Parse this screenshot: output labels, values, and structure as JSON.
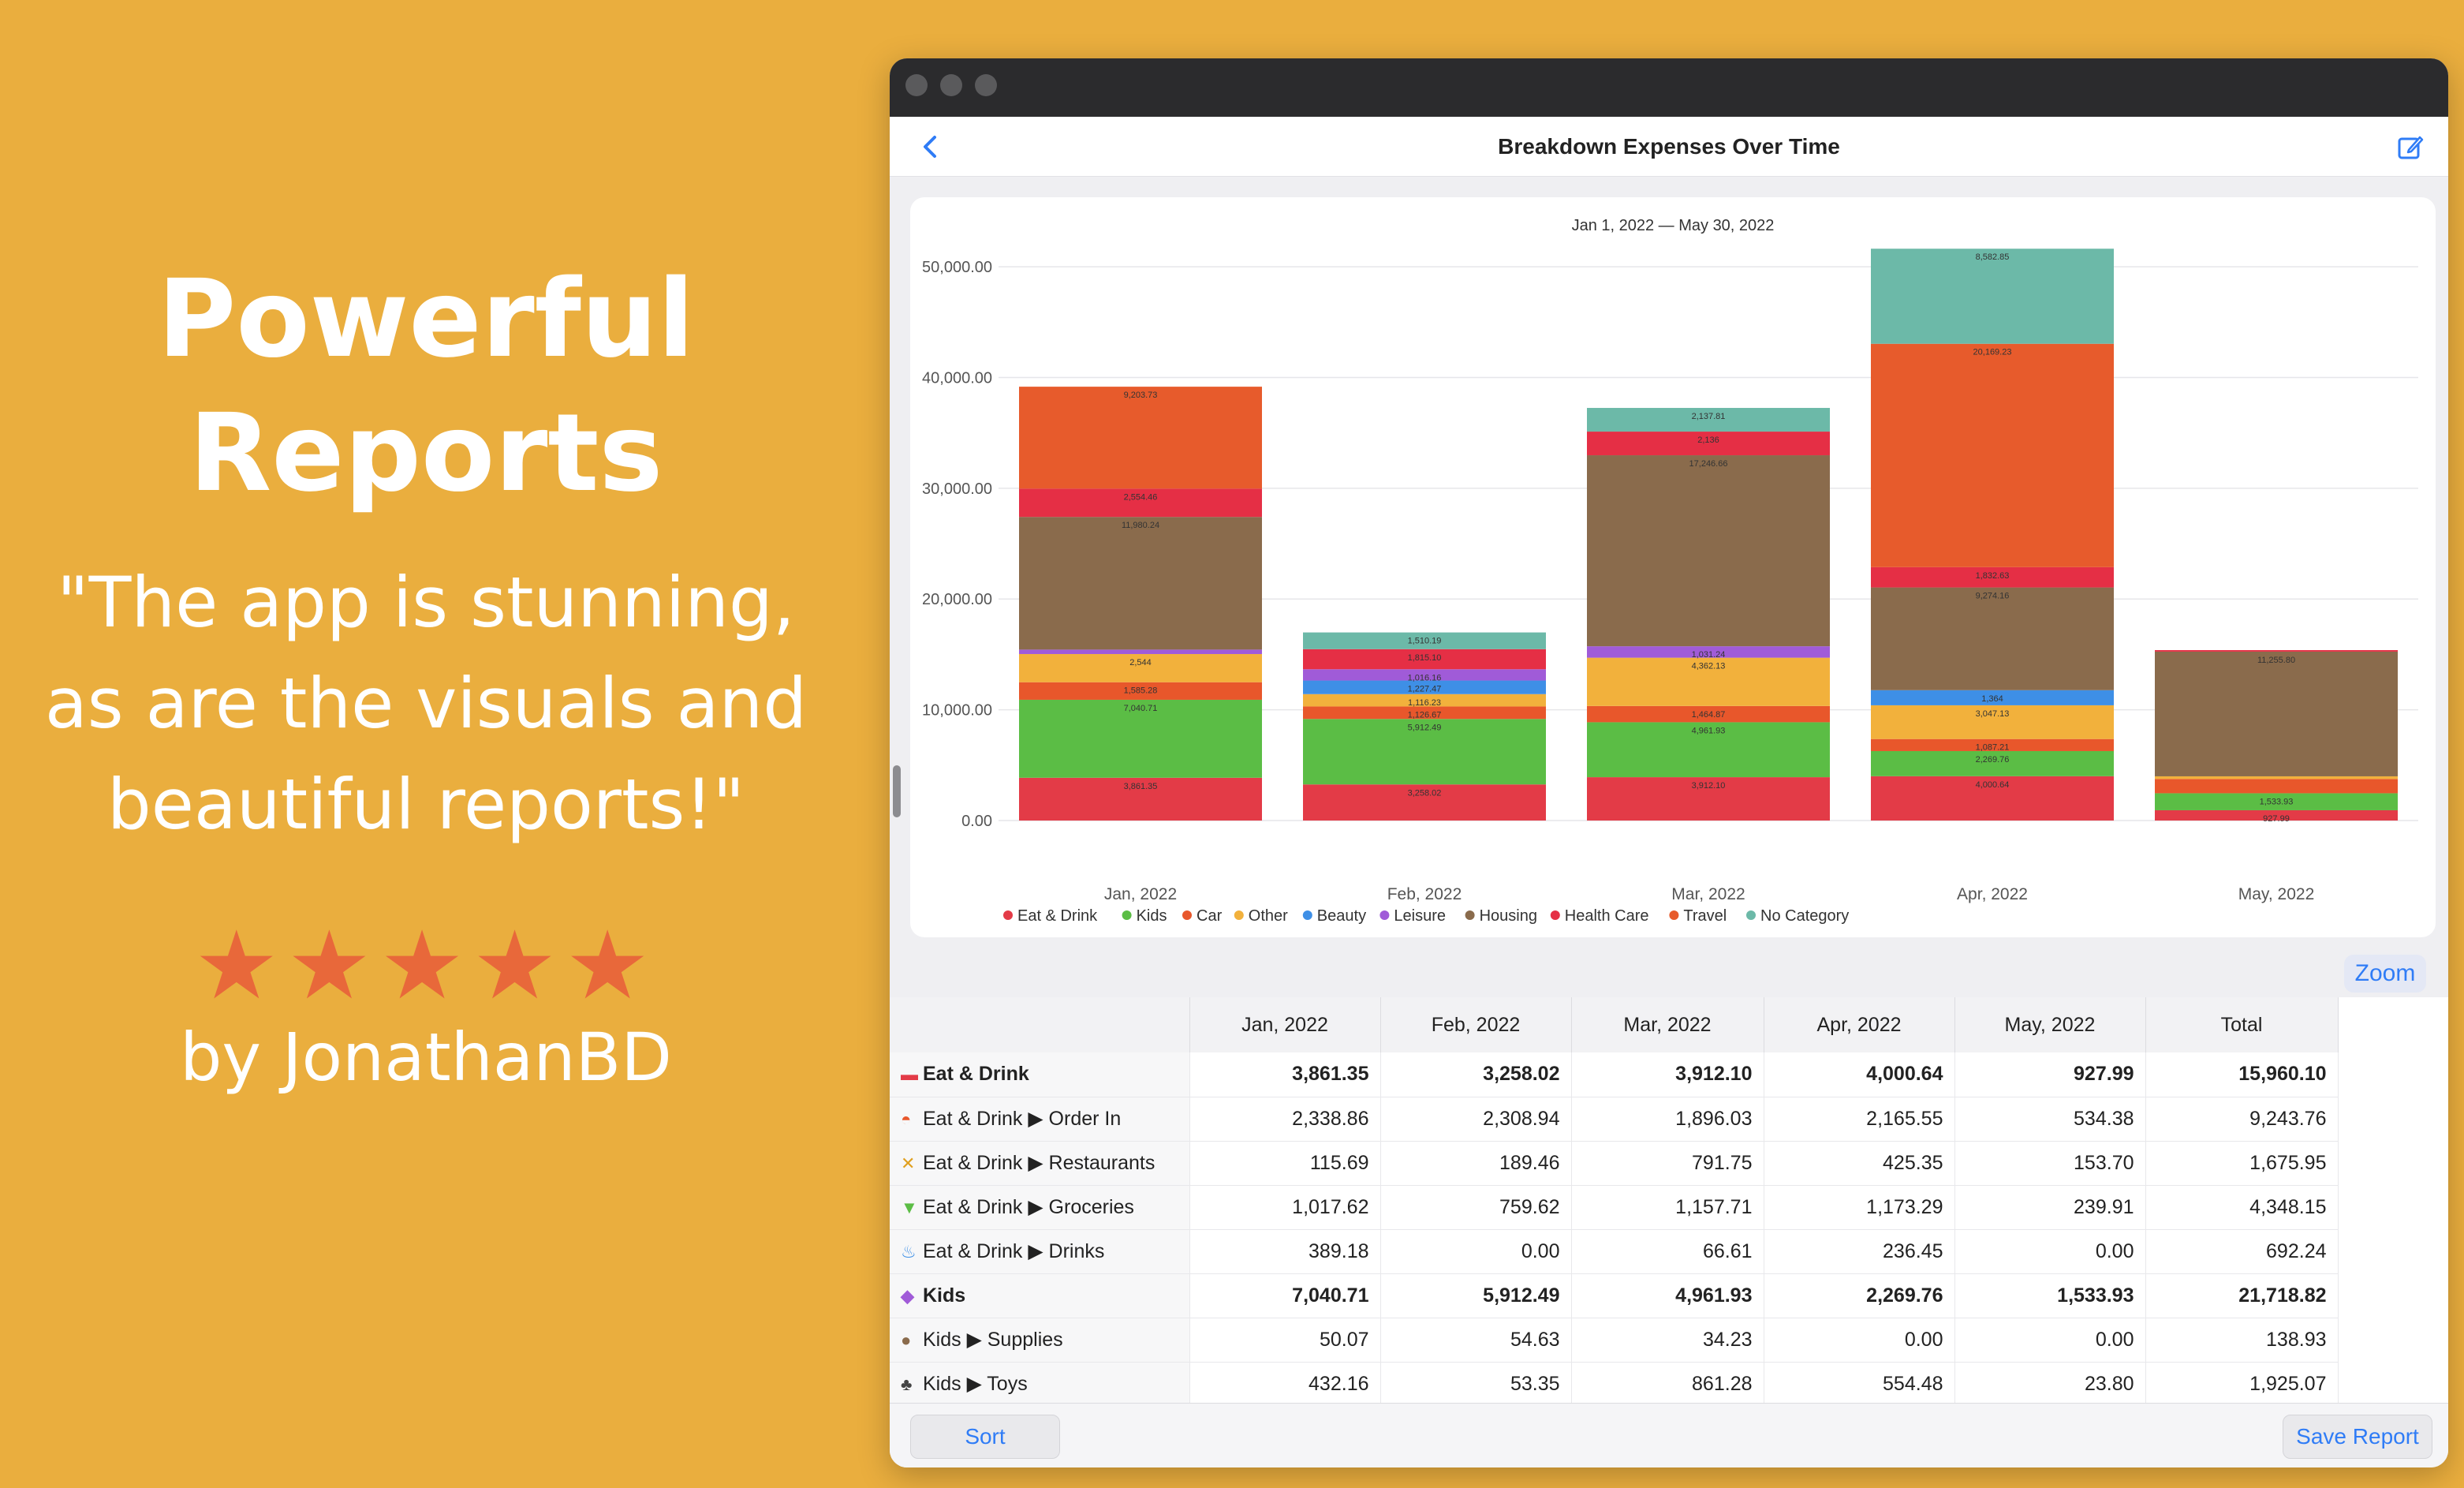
{
  "promo": {
    "headline_line1": "Powerful",
    "headline_line2": "Reports",
    "quote_line1": "\"The app is stunning,",
    "quote_line2": "as are the visuals and",
    "quote_line3": "beautiful reports!\"",
    "stars": "★★★★★",
    "byline": "by JonathanBD",
    "star_color": "#E8683A"
  },
  "window": {
    "title": "Breakdown Expenses Over Time",
    "back_icon": "chevron-left-icon",
    "edit_icon": "edit-icon",
    "accent": "#2F7CF6"
  },
  "chart_data": {
    "type": "bar",
    "stacked": true,
    "subtitle": "Jan 1, 2022 — May 30, 2022",
    "categories": [
      "Jan, 2022",
      "Feb, 2022",
      "Mar, 2022",
      "Apr, 2022",
      "May, 2022"
    ],
    "ylim": [
      0,
      52000
    ],
    "yticks": [
      "0.00",
      "10,000.00",
      "20,000.00",
      "30,000.00",
      "40,000.00",
      "50,000.00"
    ],
    "ytick_values": [
      0,
      10000,
      20000,
      30000,
      40000,
      50000
    ],
    "grid": true,
    "legend_position": "bottom",
    "series": [
      {
        "name": "Eat & Drink",
        "color": "#E33B47",
        "values": [
          3861.35,
          3258.02,
          3912.1,
          4000.64,
          927.99
        ],
        "labels": [
          "3,861.35",
          "3,258.02",
          "3,912.10",
          "4,000.64",
          "927.99"
        ]
      },
      {
        "name": "Kids",
        "color": "#5BBD45",
        "values": [
          7040.71,
          5912.49,
          4961.93,
          2269.76,
          1533.93
        ],
        "labels": [
          "7,040.71",
          "5,912.49",
          "4,961.93",
          "2,269.76",
          "1,533.93"
        ]
      },
      {
        "name": "Car",
        "color": "#E8572B",
        "values": [
          1585.28,
          1126.67,
          1464.87,
          1087.21,
          1290
        ],
        "labels": [
          "1,585.28",
          "1,126.67",
          "1,464.87",
          "1,087.21",
          ""
        ]
      },
      {
        "name": "Other",
        "color": "#F2B13C",
        "values": [
          2544,
          1116.23,
          4362.13,
          3047.13,
          240
        ],
        "labels": [
          "2,544",
          "1,116.23",
          "4,362.13",
          "3,047.13",
          ""
        ]
      },
      {
        "name": "Beauty",
        "color": "#3E8FE6",
        "values": [
          0,
          1227.47,
          0,
          1364,
          0
        ],
        "labels": [
          "",
          "1,227.47",
          "",
          "1,364",
          ""
        ]
      },
      {
        "name": "Leisure",
        "color": "#A05BD8",
        "values": [
          400,
          1016.16,
          1031.24,
          0,
          0
        ],
        "labels": [
          "",
          "1,016.16",
          "1,031.24",
          "",
          ""
        ]
      },
      {
        "name": "Housing",
        "color": "#8A6B4C",
        "values": [
          11980.24,
          0,
          17246.66,
          9274.16,
          11255.8
        ],
        "labels": [
          "11,980.24",
          "",
          "17,246.66",
          "9,274.16",
          "11,255.80"
        ]
      },
      {
        "name": "Health Care",
        "color": "#E52F45",
        "values": [
          2554.46,
          1815.1,
          2136,
          1832.63,
          140
        ],
        "labels": [
          "2,554.46",
          "1,815.10",
          "2,136",
          "1,832.63",
          ""
        ]
      },
      {
        "name": "Travel",
        "color": "#E75B2C",
        "values": [
          9203.73,
          0,
          0,
          20169.23,
          0
        ],
        "labels": [
          "9,203.73",
          "",
          "",
          "20,169.23",
          ""
        ]
      },
      {
        "name": "No Category",
        "color": "#6CB9A8",
        "values": [
          0,
          1510.19,
          2137.81,
          8582.85,
          0
        ],
        "labels": [
          "",
          "1,510.19",
          "2,137.81",
          "8,582.85",
          ""
        ]
      }
    ]
  },
  "zoom_label": "Zoom",
  "table": {
    "headers": [
      "",
      "Jan, 2022",
      "Feb, 2022",
      "Mar, 2022",
      "Apr, 2022",
      "May, 2022",
      "Total"
    ],
    "rows": [
      {
        "icon": "food-icon",
        "glyph": "▬",
        "glyph_color": "#E33B47",
        "label": "Eat & Drink",
        "bold": true,
        "values": [
          "3,861.35",
          "3,258.02",
          "3,912.10",
          "4,000.64",
          "927.99",
          "15,960.10"
        ]
      },
      {
        "icon": "delivery-icon",
        "glyph": "◓",
        "glyph_color": "#E8572B",
        "label": "Eat & Drink ▶ Order In",
        "bold": false,
        "values": [
          "2,338.86",
          "2,308.94",
          "1,896.03",
          "2,165.55",
          "534.38",
          "9,243.76"
        ]
      },
      {
        "icon": "utensils-icon",
        "glyph": "✕",
        "glyph_color": "#E0A020",
        "label": "Eat & Drink ▶ Restaurants",
        "bold": false,
        "values": [
          "115.69",
          "189.46",
          "791.75",
          "425.35",
          "153.70",
          "1,675.95"
        ]
      },
      {
        "icon": "basket-icon",
        "glyph": "▼",
        "glyph_color": "#5BBD45",
        "label": "Eat & Drink ▶ Groceries",
        "bold": false,
        "values": [
          "1,017.62",
          "759.62",
          "1,157.71",
          "1,173.29",
          "239.91",
          "4,348.15"
        ]
      },
      {
        "icon": "drink-icon",
        "glyph": "♨",
        "glyph_color": "#3E8FE6",
        "label": "Eat & Drink ▶ Drinks",
        "bold": false,
        "values": [
          "389.18",
          "0.00",
          "66.61",
          "236.45",
          "0.00",
          "692.24"
        ]
      },
      {
        "icon": "pacifier-icon",
        "glyph": "◆",
        "glyph_color": "#A05BD8",
        "label": "Kids",
        "bold": true,
        "values": [
          "7,040.71",
          "5,912.49",
          "4,961.93",
          "2,269.76",
          "1,533.93",
          "21,718.82"
        ]
      },
      {
        "icon": "supplies-icon",
        "glyph": "●",
        "glyph_color": "#8A6B4C",
        "label": "Kids ▶ Supplies",
        "bold": false,
        "values": [
          "50.07",
          "54.63",
          "34.23",
          "0.00",
          "0.00",
          "138.93"
        ]
      },
      {
        "icon": "toy-icon",
        "glyph": "♣",
        "glyph_color": "#444444",
        "label": "Kids ▶ Toys",
        "bold": false,
        "values": [
          "432.16",
          "53.35",
          "861.28",
          "554.48",
          "23.80",
          "1,925.07"
        ]
      }
    ]
  },
  "bottom": {
    "sort_label": "Sort",
    "save_label": "Save Report"
  }
}
